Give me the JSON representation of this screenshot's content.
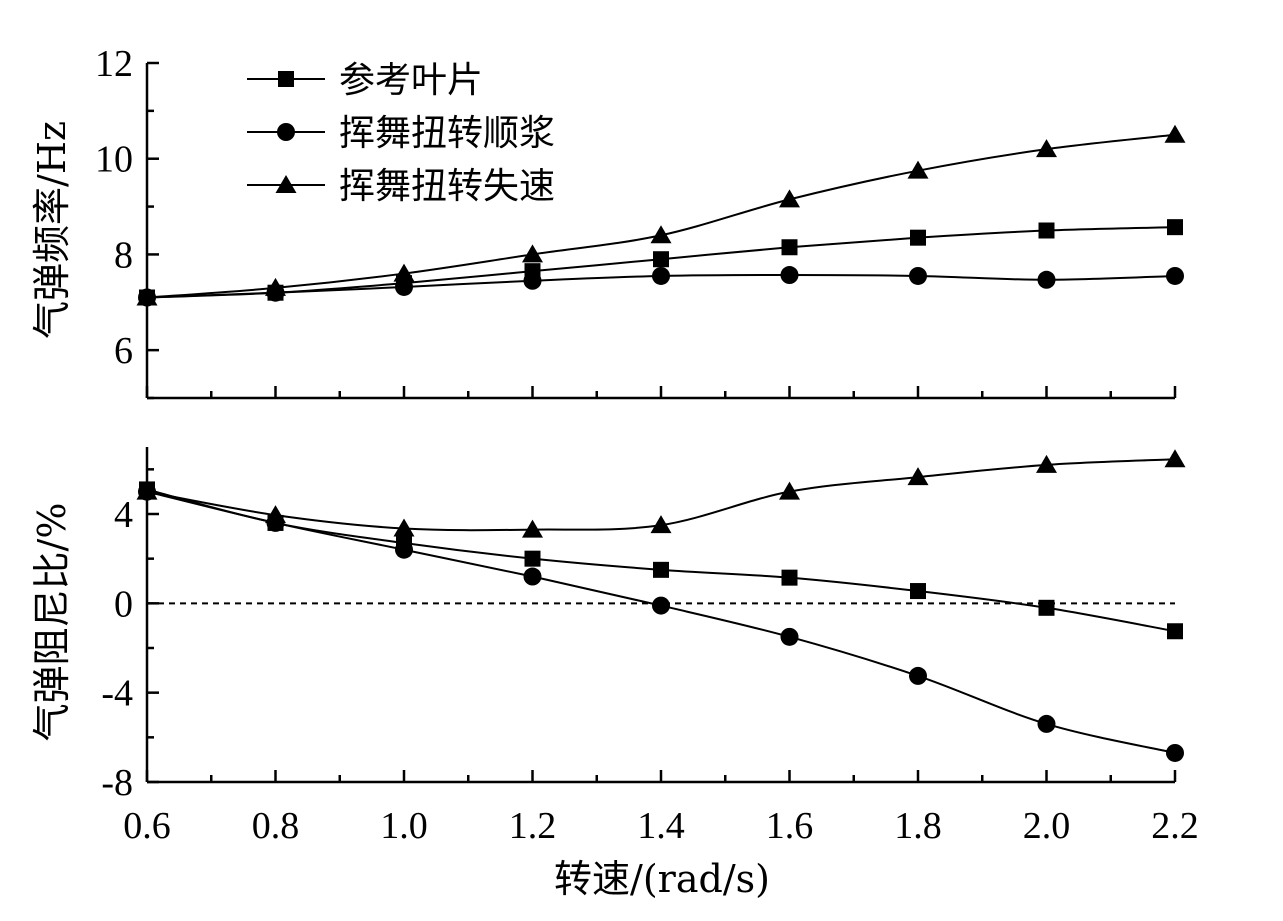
{
  "chart_data": [
    {
      "type": "line",
      "panel": "top",
      "ylabel": "气弹频率/Hz",
      "ylim": [
        5,
        12
      ],
      "yticks": [
        6,
        8,
        10,
        12
      ],
      "xlim": [
        0.6,
        2.2
      ],
      "legend": "top-left",
      "x": [
        0.6,
        0.8,
        1.0,
        1.2,
        1.4,
        1.6,
        1.8,
        2.0,
        2.2
      ],
      "series": [
        {
          "name": "参考叶片",
          "marker": "square",
          "values": [
            7.1,
            7.2,
            7.4,
            7.65,
            7.9,
            8.15,
            8.35,
            8.5,
            8.57
          ]
        },
        {
          "name": "挥舞扭转顺浆",
          "marker": "circle",
          "values": [
            7.1,
            7.2,
            7.32,
            7.45,
            7.55,
            7.57,
            7.55,
            7.47,
            7.55
          ]
        },
        {
          "name": "挥舞扭转失速",
          "marker": "triangle",
          "values": [
            7.1,
            7.3,
            7.6,
            8.0,
            8.4,
            9.15,
            9.75,
            10.2,
            10.5
          ]
        }
      ]
    },
    {
      "type": "line",
      "panel": "bottom",
      "ylabel": "气弹阻尼比/%",
      "xlabel": "转速/(rad/s)",
      "ylim": [
        -8,
        7
      ],
      "yticks": [
        -8,
        -4,
        0,
        4
      ],
      "xlim": [
        0.6,
        2.2
      ],
      "xticks": [
        "0.6",
        "0.8",
        "1.0",
        "1.2",
        "1.4",
        "1.6",
        "1.8",
        "2.0",
        "2.2"
      ],
      "reference_line": 0,
      "x": [
        0.6,
        0.8,
        1.0,
        1.2,
        1.4,
        1.6,
        1.8,
        2.0,
        2.2
      ],
      "series": [
        {
          "name": "参考叶片",
          "marker": "square",
          "values": [
            5.1,
            3.6,
            2.7,
            2.0,
            1.5,
            1.15,
            0.55,
            -0.2,
            -1.25
          ]
        },
        {
          "name": "挥舞扭转顺浆",
          "marker": "circle",
          "values": [
            5.0,
            3.6,
            2.4,
            1.2,
            -0.1,
            -1.5,
            -3.25,
            -5.4,
            -6.7
          ]
        },
        {
          "name": "挥舞扭转失速",
          "marker": "triangle",
          "values": [
            5.0,
            3.95,
            3.35,
            3.3,
            3.5,
            5.0,
            5.65,
            6.2,
            6.45
          ]
        }
      ]
    }
  ]
}
